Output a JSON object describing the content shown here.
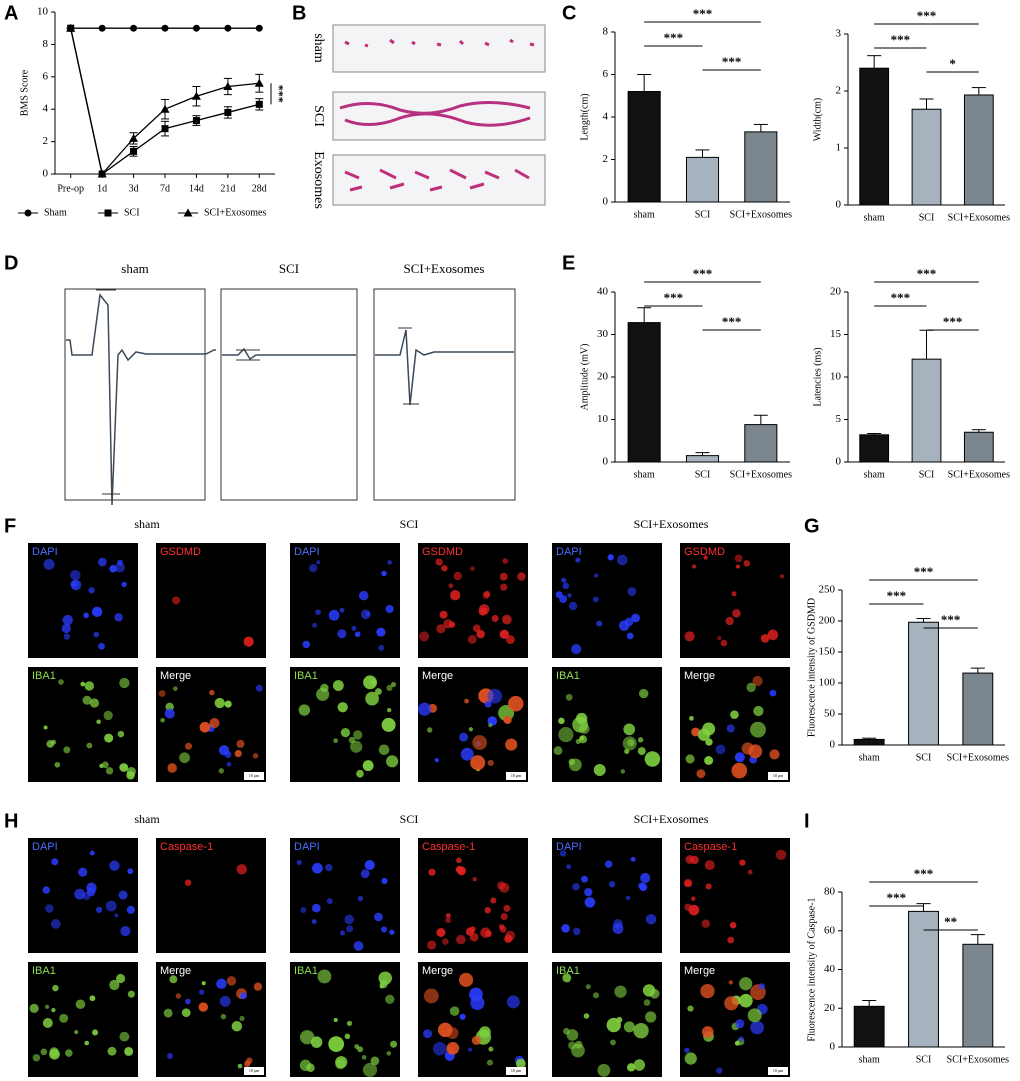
{
  "panel_labels": [
    "A",
    "B",
    "C",
    "D",
    "E",
    "F",
    "G",
    "H",
    "I"
  ],
  "gait": {
    "labels": [
      "sham",
      "SCI",
      "Exosomes"
    ]
  },
  "emg": {
    "labels": [
      "sham",
      "SCI",
      "SCI+Exosomes"
    ]
  },
  "staining_f": {
    "groups": [
      "sham",
      "SCI",
      "SCI+Exosomes"
    ],
    "channels": [
      "DAPI",
      "GSDMD",
      "IBA1",
      "Merge"
    ],
    "scale_bar": "10 μm"
  },
  "staining_h": {
    "groups": [
      "sham",
      "SCI",
      "SCI+Exosomes"
    ],
    "channels": [
      "DAPI",
      "Caspase-1",
      "IBA1",
      "Merge"
    ],
    "scale_bar": "10 μm"
  },
  "chart_data": [
    {
      "type": "line",
      "ylabel": "BMS Score",
      "categories": [
        "Pre-op",
        "1d",
        "3d",
        "7d",
        "14d",
        "21d",
        "28d"
      ],
      "series": [
        {
          "name": "Sham",
          "color": "#000000",
          "marker": "circle",
          "values": [
            9,
            9,
            9,
            9,
            9,
            9,
            9
          ]
        },
        {
          "name": "SCI",
          "color": "#000000",
          "marker": "square",
          "values": [
            9,
            0,
            1.4,
            2.8,
            3.3,
            3.8,
            4.3
          ],
          "errors": [
            0,
            0,
            0.3,
            0.45,
            0.3,
            0.35,
            0.35
          ]
        },
        {
          "name": "SCI+Exosomes",
          "color": "#000000",
          "marker": "triangle",
          "values": [
            9,
            0,
            2.2,
            4.0,
            4.8,
            5.4,
            5.6
          ],
          "errors": [
            0,
            0,
            0.35,
            0.6,
            0.6,
            0.5,
            0.55
          ]
        }
      ],
      "ylim": [
        0,
        10
      ],
      "yticks": [
        0,
        2,
        4,
        6,
        8,
        10
      ],
      "annotation": "***"
    },
    {
      "type": "bar",
      "ylabel": "Length(cm)",
      "categories": [
        "sham",
        "SCI",
        "SCI+Exosomes"
      ],
      "values": [
        5.2,
        2.1,
        3.3
      ],
      "errors": [
        0.8,
        0.35,
        0.35
      ],
      "colors": [
        "#111111",
        "#a6b2bd",
        "#7b868e"
      ],
      "ylim": [
        0,
        8
      ],
      "yticks": [
        0,
        2,
        4,
        6,
        8
      ],
      "significance": [
        "***",
        "***",
        "***"
      ]
    },
    {
      "type": "bar",
      "ylabel": "Width(cm)",
      "categories": [
        "sham",
        "SCI",
        "SCI+Exosomes"
      ],
      "values": [
        2.4,
        1.68,
        1.93
      ],
      "errors": [
        0.22,
        0.18,
        0.13
      ],
      "colors": [
        "#111111",
        "#a6b2bd",
        "#7b868e"
      ],
      "ylim": [
        0,
        3
      ],
      "yticks": [
        0,
        1,
        2,
        3
      ],
      "significance": [
        "***",
        "*",
        "***"
      ]
    },
    {
      "type": "bar",
      "ylabel": "Amplitude (mV)",
      "categories": [
        "sham",
        "SCI",
        "SCI+Exosomes"
      ],
      "values": [
        32.8,
        1.5,
        8.8
      ],
      "errors": [
        3.5,
        0.7,
        2.2
      ],
      "colors": [
        "#111111",
        "#a6b2bd",
        "#7b868e"
      ],
      "ylim": [
        0,
        40
      ],
      "yticks": [
        0,
        10,
        20,
        30,
        40
      ],
      "significance": [
        "***",
        "***",
        "***"
      ]
    },
    {
      "type": "bar",
      "ylabel": "Latencies (ms)",
      "categories": [
        "sham",
        "SCI",
        "SCI+Exosomes"
      ],
      "values": [
        3.2,
        12.1,
        3.5
      ],
      "errors": [
        0.15,
        3.4,
        0.3
      ],
      "colors": [
        "#111111",
        "#a6b2bd",
        "#7b868e"
      ],
      "ylim": [
        0,
        20
      ],
      "yticks": [
        0,
        5,
        10,
        15,
        20
      ],
      "significance": [
        "***",
        "***",
        "***"
      ]
    },
    {
      "type": "bar",
      "ylabel": "Fluorescence intensity of GSDMD",
      "categories": [
        "sham",
        "SCI",
        "SCI+Exosomes"
      ],
      "values": [
        9,
        198,
        116
      ],
      "errors": [
        2,
        6,
        8
      ],
      "colors": [
        "#111111",
        "#a6b2bd",
        "#7b868e"
      ],
      "ylim": [
        0,
        250
      ],
      "yticks": [
        0,
        50,
        100,
        150,
        200,
        250
      ],
      "significance": [
        "***",
        "***",
        "***"
      ]
    },
    {
      "type": "bar",
      "ylabel": "Fluorescence intensity of Caspase-1",
      "categories": [
        "sham",
        "SCI",
        "SCI+Exosomes"
      ],
      "values": [
        21,
        70,
        53
      ],
      "errors": [
        3,
        4,
        5
      ],
      "colors": [
        "#111111",
        "#a6b2bd",
        "#7b868e"
      ],
      "ylim": [
        0,
        80
      ],
      "yticks": [
        0,
        20,
        40,
        60,
        80
      ],
      "significance": [
        "***",
        "**",
        "***"
      ]
    }
  ]
}
